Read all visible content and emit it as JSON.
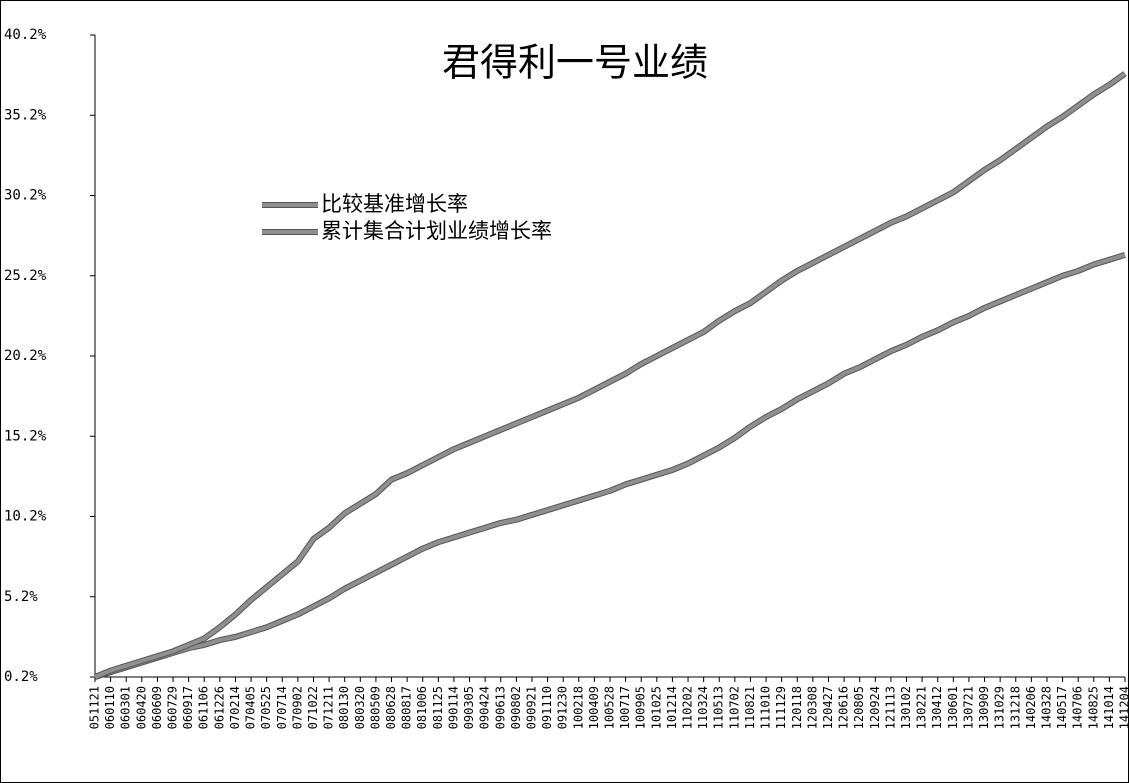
{
  "chart_data": {
    "type": "line",
    "title": "君得利一号业绩",
    "categories": [
      "051121",
      "060110",
      "060301",
      "060420",
      "060609",
      "060729",
      "060917",
      "061106",
      "061226",
      "070214",
      "070405",
      "070525",
      "070714",
      "070902",
      "071022",
      "071211",
      "080130",
      "080320",
      "080509",
      "080628",
      "080817",
      "081006",
      "081125",
      "090114",
      "090305",
      "090424",
      "090613",
      "090802",
      "090921",
      "091110",
      "091230",
      "100218",
      "100409",
      "100528",
      "100717",
      "100905",
      "101025",
      "101214",
      "110202",
      "110324",
      "110513",
      "110702",
      "110821",
      "111010",
      "111129",
      "120118",
      "120308",
      "120427",
      "120616",
      "120805",
      "120924",
      "121113",
      "130102",
      "130221",
      "130412",
      "130601",
      "130721",
      "130909",
      "131029",
      "131218",
      "140206",
      "140328",
      "140517",
      "140706",
      "140825",
      "141014",
      "141204"
    ],
    "series": [
      {
        "name": "比较基准增长率",
        "color": "#8f8f8f",
        "values": [
          0.2,
          0.5,
          0.8,
          1.1,
          1.4,
          1.7,
          2.0,
          2.2,
          2.5,
          2.7,
          3.0,
          3.3,
          3.7,
          4.1,
          4.6,
          5.1,
          5.7,
          6.2,
          6.7,
          7.2,
          7.7,
          8.2,
          8.6,
          8.9,
          9.2,
          9.5,
          9.8,
          10.0,
          10.3,
          10.6,
          10.9,
          11.2,
          11.5,
          11.8,
          12.2,
          12.5,
          12.8,
          13.1,
          13.5,
          14.0,
          14.5,
          15.1,
          15.8,
          16.4,
          16.9,
          17.5,
          18.0,
          18.5,
          19.1,
          19.5,
          20.0,
          20.5,
          20.9,
          21.4,
          21.8,
          22.3,
          22.7,
          23.2,
          23.6,
          24.0,
          24.4,
          24.8,
          25.2,
          25.5,
          25.9,
          26.2,
          26.5
        ]
      },
      {
        "name": "累计集合计划业绩增长率",
        "color": "#8f8f8f",
        "values": [
          0.2,
          0.6,
          0.9,
          1.2,
          1.5,
          1.8,
          2.2,
          2.6,
          3.3,
          4.1,
          5.0,
          5.8,
          6.6,
          7.4,
          8.8,
          9.5,
          10.4,
          11.0,
          11.6,
          12.5,
          12.9,
          13.4,
          13.9,
          14.4,
          14.8,
          15.2,
          15.6,
          16.0,
          16.4,
          16.8,
          17.2,
          17.6,
          18.1,
          18.6,
          19.1,
          19.7,
          20.2,
          20.7,
          21.2,
          21.7,
          22.4,
          23.0,
          23.5,
          24.2,
          24.9,
          25.5,
          26.0,
          26.5,
          27.0,
          27.5,
          28.0,
          28.5,
          28.9,
          29.4,
          29.9,
          30.4,
          31.1,
          31.8,
          32.4,
          33.1,
          33.8,
          34.5,
          35.1,
          35.8,
          36.5,
          37.1,
          37.8
        ]
      }
    ],
    "ylim": [
      0.2,
      40.2
    ],
    "yticks": [
      {
        "value": 0.2,
        "label": "0.2%"
      },
      {
        "value": 5.2,
        "label": "5.2%"
      },
      {
        "value": 10.2,
        "label": "10.2%"
      },
      {
        "value": 15.2,
        "label": "15.2%"
      },
      {
        "value": 20.2,
        "label": "20.2%"
      },
      {
        "value": 25.2,
        "label": "25.2%"
      },
      {
        "value": 30.2,
        "label": "30.2%"
      },
      {
        "value": 35.2,
        "label": "35.2%"
      },
      {
        "value": 40.2,
        "label": "40.2%"
      }
    ],
    "grid": false
  }
}
